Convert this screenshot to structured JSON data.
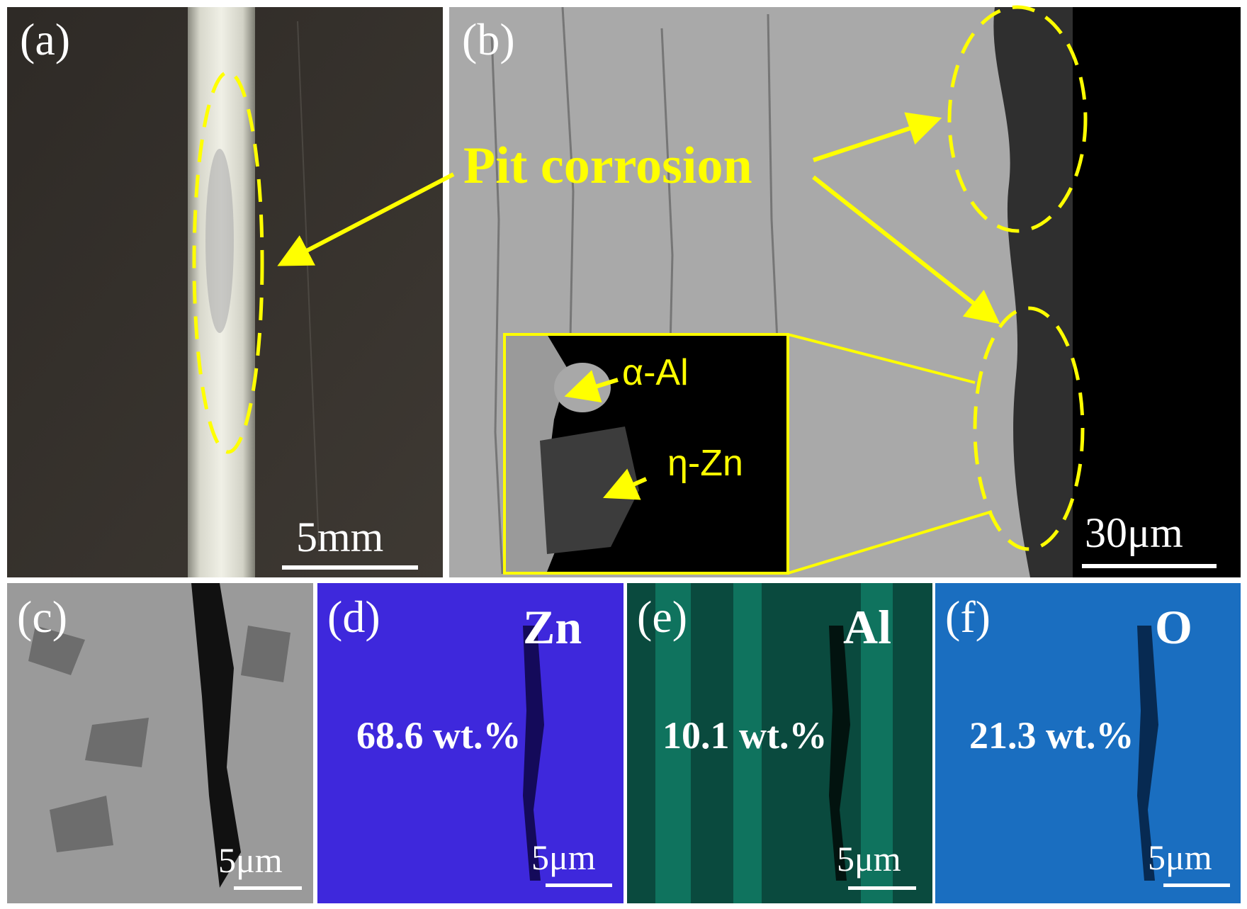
{
  "colors": {
    "annotation": "#ffff00",
    "zn_map": "#3a22d6",
    "al_map": "#0c6a58",
    "o_map": "#1466b6"
  },
  "panels": {
    "a": {
      "label": "(a)",
      "scale": "5mm"
    },
    "b": {
      "label": "(b)",
      "scale": "30μm"
    },
    "c": {
      "label": "(c)",
      "scale": "5μm"
    },
    "d": {
      "label": "(d)",
      "element": "Zn",
      "wt": "68.6 wt.%",
      "scale": "5μm"
    },
    "e": {
      "label": "(e)",
      "element": "Al",
      "wt": "10.1 wt.%",
      "scale": "5μm"
    },
    "f": {
      "label": "(f)",
      "element": "O",
      "wt": "21.3 wt.%",
      "scale": "5μm"
    }
  },
  "annotations": {
    "pit_corrosion": "Pit corrosion",
    "alpha_al": "α-Al",
    "eta_zn": "η-Zn"
  }
}
